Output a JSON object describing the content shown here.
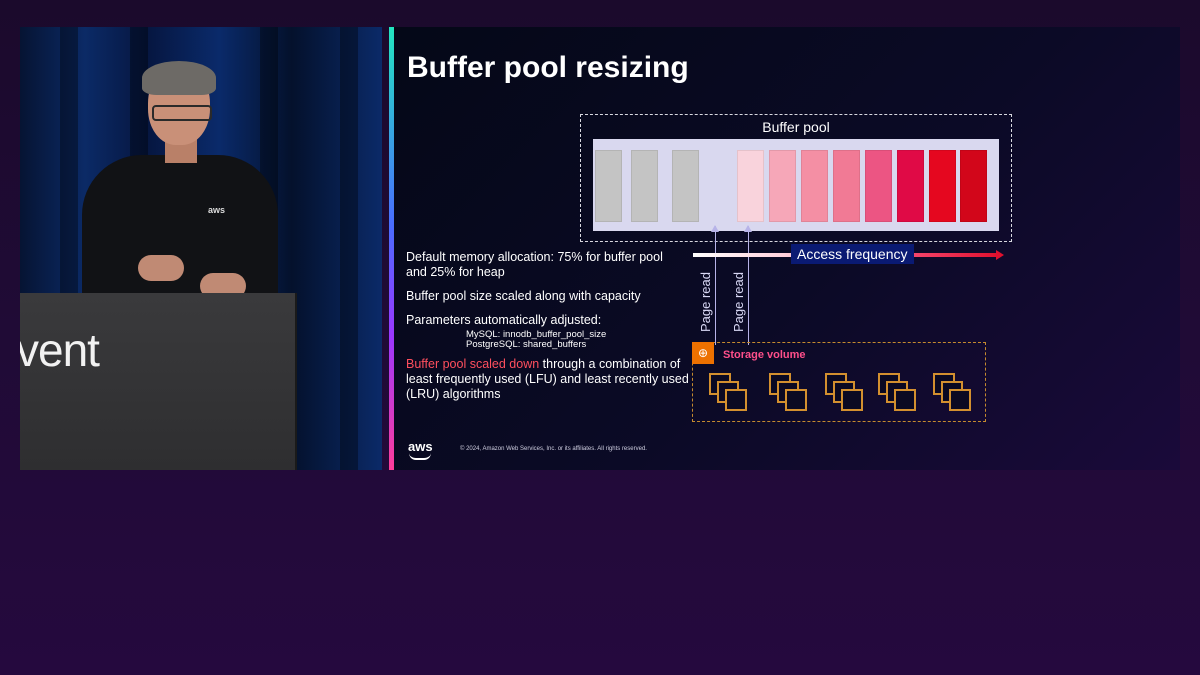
{
  "video": {
    "podium_text": "vent",
    "shirt_logo": "aws"
  },
  "slide": {
    "title": "Buffer pool resizing",
    "buffer_pool_label": "Buffer pool",
    "page_read_label_1": "Page read",
    "page_read_label_2": "Page read",
    "access_frequency_label": "Access frequency",
    "storage_volume_label": "Storage volume",
    "cell_colors": [
      "#c4c4c4",
      "#c4c4c4",
      "#c4c4c4",
      "#f9d3dc",
      "#f6a7b8",
      "#f48fa4",
      "#f17a95",
      "#ec5583",
      "#e00a46",
      "#e5071f",
      "#d2061a"
    ],
    "bullet_1": "Default memory allocation: 75% for buffer pool and 25% for heap",
    "bullet_2": "Buffer pool size scaled along with capacity",
    "bullet_3": "Parameters automatically adjusted:",
    "param_mysql": "MySQL: innodb_buffer_pool_size",
    "param_postgres": "PostgreSQL: shared_buffers",
    "bullet_4_highlight": "Buffer pool scaled down",
    "bullet_4_rest": " through a combination of least frequently used (LFU) and least recently used (LRU) algorithms",
    "aws_logo": "aws",
    "copyright": "© 2024, Amazon Web Services, Inc. or its affiliates. All rights reserved."
  },
  "colors": {
    "accent_pink": "#ff4f8b",
    "storage_orange": "#ed7100",
    "access_frequency_bg": "#0a1a73"
  }
}
